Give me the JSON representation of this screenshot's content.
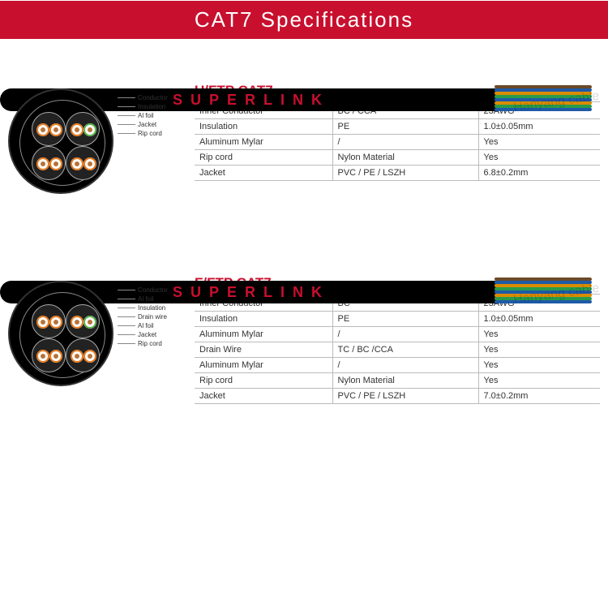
{
  "header": {
    "title": "CAT7   Specifications"
  },
  "cable_brand": "SUPERLINK",
  "watermark": "Hanyang cable",
  "wire_colors": [
    "#6b4a2a",
    "#1e5aa8",
    "#d98c00",
    "#2a9b4a",
    "#1e5aa8",
    "#d98c00",
    "#2a9b4a",
    "#1e5aa8"
  ],
  "pair_colors": {
    "orange": "#e67a1e",
    "green": "#5ab54e",
    "copper": "#b8733a"
  },
  "sections": [
    {
      "title": "U/FTP CAT7",
      "diagram_labels": [
        "Conductor",
        "Insulation",
        "Al foil",
        "Jacket",
        "Rip cord"
      ],
      "rows": [
        {
          "k": "Inner Conductor",
          "v1": "BC / CCA",
          "v2": "23AWG"
        },
        {
          "k": "Insulation",
          "v1": "PE",
          "v2": "1.0±0.05mm"
        },
        {
          "k": "Aluminum Mylar",
          "v1": "/",
          "v2": "Yes"
        },
        {
          "k": "Rip cord",
          "v1": "Nylon Material",
          "v2": "Yes"
        },
        {
          "k": "Jacket",
          "v1": "PVC / PE / LSZH",
          "v2": "6.8±0.2mm"
        }
      ]
    },
    {
      "title": "F/FTP CAT7",
      "diagram_labels": [
        "Conductor",
        "Al foil",
        "Insulation",
        "Drain wire",
        "Al foil",
        "Jacket",
        "Rip cord"
      ],
      "rows": [
        {
          "k": "Inner Conductor",
          "v1": "BC",
          "v2": "23AWG"
        },
        {
          "k": "Insulation",
          "v1": "PE",
          "v2": "1.0±0.05mm"
        },
        {
          "k": "Aluminum Mylar",
          "v1": "/",
          "v2": "Yes"
        },
        {
          "k": "Drain Wire",
          "v1": "TC / BC /CCA",
          "v2": "Yes"
        },
        {
          "k": "Aluminum Mylar",
          "v1": "/",
          "v2": "Yes"
        },
        {
          "k": "Rip cord",
          "v1": "Nylon Material",
          "v2": "Yes"
        },
        {
          "k": "Jacket",
          "v1": "PVC / PE / LSZH",
          "v2": "7.0±0.2mm"
        }
      ]
    }
  ]
}
